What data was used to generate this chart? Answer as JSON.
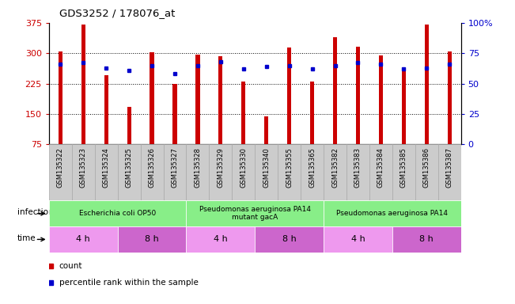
{
  "title": "GDS3252 / 178076_at",
  "samples": [
    "GSM135322",
    "GSM135323",
    "GSM135324",
    "GSM135325",
    "GSM135326",
    "GSM135327",
    "GSM135328",
    "GSM135329",
    "GSM135330",
    "GSM135340",
    "GSM135355",
    "GSM135365",
    "GSM135382",
    "GSM135383",
    "GSM135384",
    "GSM135385",
    "GSM135386",
    "GSM135387"
  ],
  "counts": [
    305,
    370,
    245,
    168,
    302,
    225,
    296,
    292,
    230,
    144,
    314,
    230,
    340,
    316,
    295,
    260,
    370,
    305
  ],
  "percentile_ranks": [
    66,
    67,
    63,
    61,
    65,
    58,
    65,
    68,
    62,
    64,
    65,
    62,
    65,
    67,
    66,
    62,
    63,
    66
  ],
  "ylim_left": [
    75,
    375
  ],
  "ylim_right": [
    0,
    100
  ],
  "yticks_left": [
    75,
    150,
    225,
    300,
    375
  ],
  "yticks_right": [
    0,
    25,
    50,
    75,
    100
  ],
  "ytick_labels_right": [
    "0",
    "25",
    "50",
    "75",
    "100%"
  ],
  "bar_color": "#cc0000",
  "dot_color": "#0000cc",
  "gridline_color": "#000000",
  "infection_groups": [
    {
      "label": "Escherichia coli OP50",
      "start": 0,
      "end": 6,
      "color": "#88ee88"
    },
    {
      "label": "Pseudomonas aeruginosa PA14\nmutant gacA",
      "start": 6,
      "end": 12,
      "color": "#88ee88"
    },
    {
      "label": "Pseudomonas aeruginosa PA14",
      "start": 12,
      "end": 18,
      "color": "#88ee88"
    }
  ],
  "time_groups": [
    {
      "label": "4 h",
      "start": 0,
      "end": 3,
      "color": "#ee99ee"
    },
    {
      "label": "8 h",
      "start": 3,
      "end": 6,
      "color": "#cc66cc"
    },
    {
      "label": "4 h",
      "start": 6,
      "end": 9,
      "color": "#ee99ee"
    },
    {
      "label": "8 h",
      "start": 9,
      "end": 12,
      "color": "#cc66cc"
    },
    {
      "label": "4 h",
      "start": 12,
      "end": 15,
      "color": "#ee99ee"
    },
    {
      "label": "8 h",
      "start": 15,
      "end": 18,
      "color": "#cc66cc"
    }
  ],
  "infection_label": "infection",
  "time_label": "time",
  "legend_count_label": "count",
  "legend_percentile_label": "percentile rank within the sample",
  "bg_color": "#ffffff",
  "plot_bg_color": "#ffffff",
  "tick_color_left": "#cc0000",
  "tick_color_right": "#0000cc",
  "label_bg_color": "#cccccc",
  "label_border_color": "#aaaaaa"
}
